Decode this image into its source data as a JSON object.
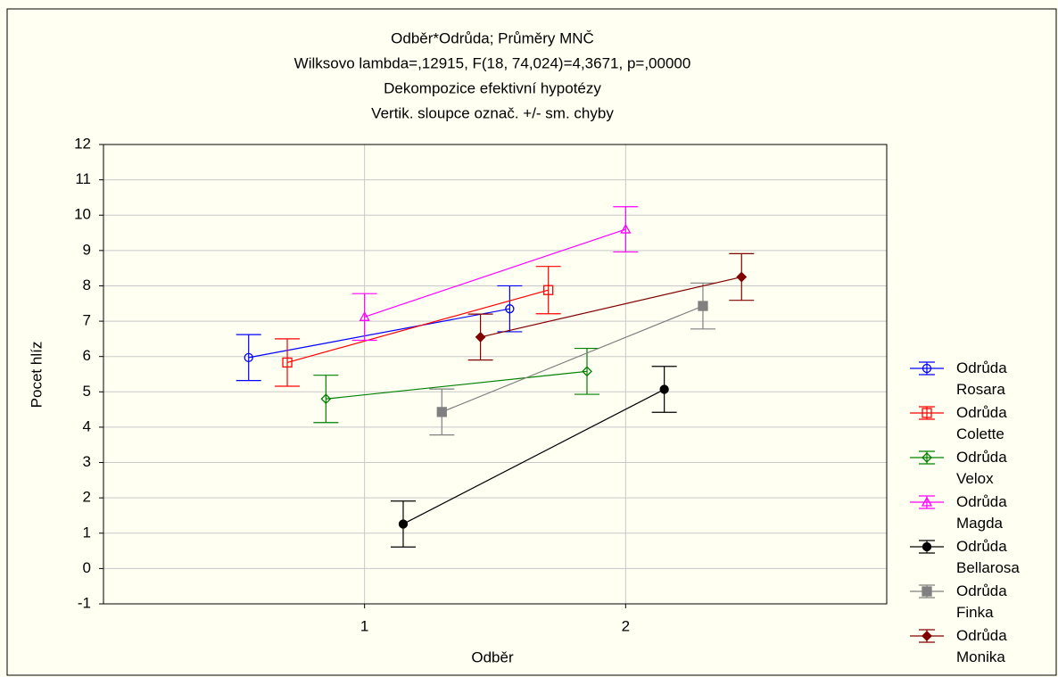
{
  "chart_data": {
    "type": "line",
    "title": "Odběr*Odrůda; Průměry MNČ",
    "subtitle": [
      "Wilksovo lambda=,12915, F(18, 74,024)=4,3671, p=,00000",
      "Dekompozice efektivní hypotézy",
      "Vertik. sloupce označ. +/- sm. chyby"
    ],
    "x_label": "Odběr",
    "y_label": "Pocet hlíz",
    "x": [
      1,
      2
    ],
    "xlim": [
      0,
      3
    ],
    "xticks": [
      1,
      2
    ],
    "ylim": [
      -1,
      12
    ],
    "yticks": [
      -1,
      0,
      1,
      2,
      3,
      4,
      5,
      6,
      7,
      8,
      9,
      10,
      11,
      12
    ],
    "grid": true,
    "legend": "right",
    "series": [
      {
        "name": "Odrůda Rosara",
        "color": "#0000ff",
        "marker": "circle-open",
        "values": [
          5.97,
          7.35
        ],
        "errors": [
          0.65,
          0.65
        ]
      },
      {
        "name": "Odrůda Colette",
        "color": "#ff0000",
        "marker": "square-open",
        "values": [
          5.83,
          7.88
        ],
        "errors": [
          0.67,
          0.67
        ]
      },
      {
        "name": "Odrůda Velox",
        "color": "#008000",
        "marker": "diamond-open",
        "values": [
          4.8,
          5.58
        ],
        "errors": [
          0.67,
          0.65
        ]
      },
      {
        "name": "Odrůda Magda",
        "color": "#ff00ff",
        "marker": "triangle-open",
        "values": [
          7.12,
          9.6
        ],
        "errors": [
          0.66,
          0.64
        ]
      },
      {
        "name": "Odrůda Bellarosa",
        "color": "#000000",
        "marker": "circle",
        "values": [
          1.26,
          5.07
        ],
        "errors": [
          0.65,
          0.65
        ]
      },
      {
        "name": "Odrůda Finka",
        "color": "#808080",
        "marker": "square",
        "values": [
          4.43,
          7.43
        ],
        "errors": [
          0.65,
          0.65
        ]
      },
      {
        "name": "Odrůda Monika",
        "color": "#800000",
        "marker": "diamond",
        "values": [
          6.55,
          8.25
        ],
        "errors": [
          0.65,
          0.66
        ]
      }
    ]
  }
}
